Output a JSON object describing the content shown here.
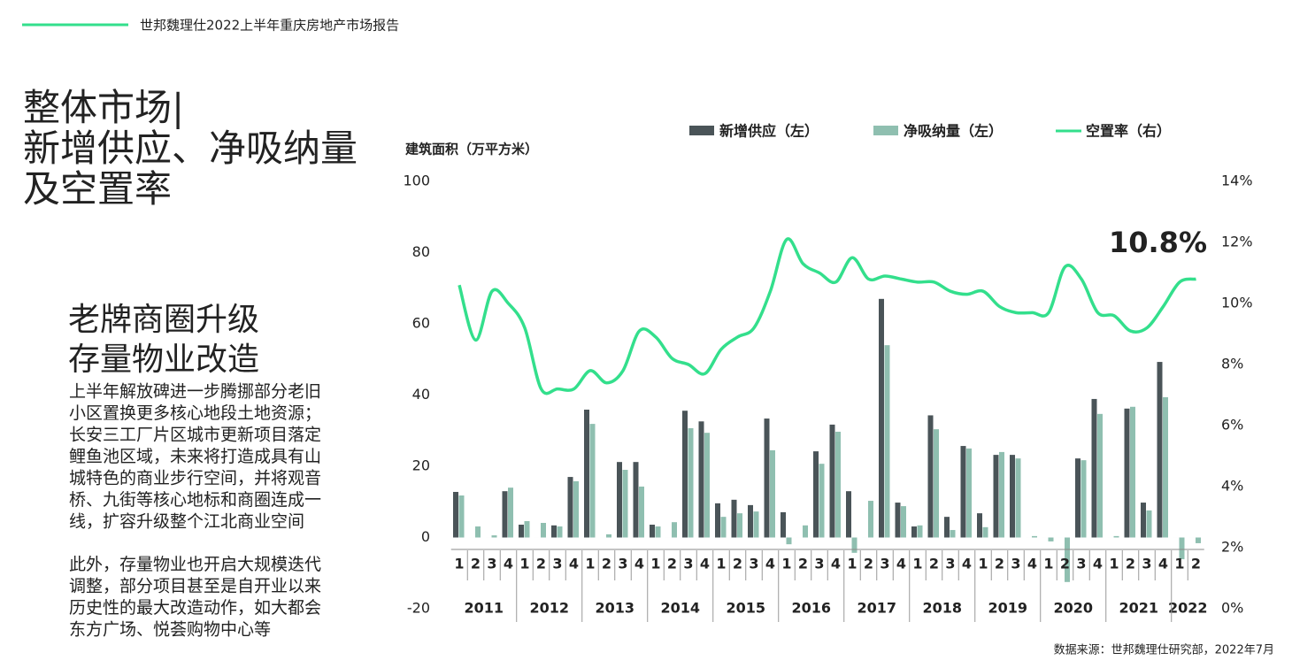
{
  "header": {
    "title": "世邦魏理仕2022上半年重庆房地产市场报告"
  },
  "heading": {
    "lines": [
      "整体市场|",
      "新增供应、净吸纳量",
      "及空置率"
    ]
  },
  "subheading": {
    "lines": [
      "老牌商圈升级",
      "存量物业改造"
    ]
  },
  "body": {
    "paragraphs": [
      [
        "上半年解放碑进一步腾挪部分老旧",
        "小区置换更多核心地段土地资源；",
        "长安三工厂片区城市更新项目落定",
        "鲤鱼池区域，未来将打造成具有山",
        "城特色的商业步行空间，并将观音",
        "桥、九街等核心地标和商圈连成一",
        "线，扩容升级整个江北商业空间"
      ],
      [
        "此外，存量物业也开启大规模迭代",
        "调整，部分项目甚至是自开业以来",
        "历史性的最大改造动作，如大都会",
        "东方广场、悦荟购物中心等"
      ]
    ]
  },
  "footer": {
    "source": "数据来源：世邦魏理仕研究部，2022年7月"
  },
  "chart_data": {
    "type": "bar-line",
    "y_label": "建筑面积（万平方米）",
    "categories": [
      "1",
      "2",
      "3",
      "4",
      "1",
      "2",
      "3",
      "4",
      "1",
      "2",
      "3",
      "4",
      "1",
      "2",
      "3",
      "4",
      "1",
      "2",
      "3",
      "4",
      "1",
      "2",
      "3",
      "4",
      "1",
      "2",
      "3",
      "4",
      "1",
      "2",
      "3",
      "4",
      "1",
      "2",
      "3",
      "4",
      "1",
      "2",
      "3",
      "4",
      "1",
      "2",
      "3",
      "4",
      "1",
      "2"
    ],
    "years": [
      "2011",
      "2012",
      "2013",
      "2014",
      "2015",
      "2016",
      "2017",
      "2018",
      "2019",
      "2020",
      "2021",
      "2022"
    ],
    "series": [
      {
        "name": "新增供应（左）",
        "color": "#4a5458",
        "kind": "bar",
        "axis": "y",
        "values": [
          12.8,
          0,
          0,
          13,
          3.6,
          0,
          3.4,
          17,
          35.9,
          0,
          21.2,
          21.2,
          3.6,
          0,
          35.6,
          32.6,
          9.6,
          10.6,
          9.1,
          33.4,
          7.1,
          0,
          24.2,
          31.7,
          13,
          0,
          67,
          9.8,
          3.1,
          34.3,
          5.8,
          25.7,
          6.8,
          23.2,
          23.2,
          0,
          0,
          0,
          22.2,
          38.9,
          0,
          36.2,
          9.8,
          49.3,
          0,
          0
        ]
      },
      {
        "name": "净吸纳量（左）",
        "color": "#8fbfb0",
        "kind": "bar",
        "axis": "y",
        "values": [
          11.8,
          3.1,
          0.6,
          14,
          4.6,
          4.1,
          3.1,
          15.8,
          31.9,
          0.9,
          19,
          14.3,
          3.1,
          4.3,
          30.7,
          29.4,
          5.8,
          6.8,
          7.3,
          24.5,
          -1.9,
          3.4,
          20.7,
          29.7,
          -4.3,
          10.3,
          54,
          8.8,
          3.4,
          30.4,
          2.1,
          25,
          2.9,
          24,
          22.2,
          0.4,
          -1.1,
          -12.5,
          21.7,
          34.7,
          0.4,
          36.7,
          7.6,
          39.4,
          -6.1,
          -1.6
        ]
      },
      {
        "name": "空置率（右）",
        "color": "#33df8c",
        "kind": "line",
        "axis": "y2",
        "values": [
          10.6,
          8.8,
          10.4,
          10.0,
          9.2,
          7.2,
          7.2,
          7.2,
          7.8,
          7.4,
          7.8,
          9.1,
          8.9,
          8.2,
          8.0,
          7.7,
          8.5,
          8.9,
          9.2,
          10.4,
          12.1,
          11.3,
          11.0,
          10.7,
          11.5,
          10.8,
          10.9,
          10.8,
          10.7,
          10.7,
          10.4,
          10.3,
          10.4,
          9.9,
          9.7,
          9.7,
          9.7,
          11.2,
          10.8,
          9.7,
          9.6,
          9.1,
          9.2,
          9.9,
          10.7,
          10.8
        ]
      }
    ],
    "annotation": "10.8%",
    "ylim": [
      -20,
      100
    ],
    "yticks": [
      -20,
      0,
      20,
      40,
      60,
      80,
      100
    ],
    "y2lim": [
      0,
      14
    ],
    "y2ticks": [
      {
        "value": 0,
        "label": "0%"
      },
      {
        "value": 2,
        "label": "2%"
      },
      {
        "value": 4,
        "label": "4%"
      },
      {
        "value": 6,
        "label": "6%"
      },
      {
        "value": 8,
        "label": "8%"
      },
      {
        "value": 10,
        "label": "10%"
      },
      {
        "value": 12,
        "label": "12%"
      },
      {
        "value": 14,
        "label": "14%"
      }
    ]
  }
}
